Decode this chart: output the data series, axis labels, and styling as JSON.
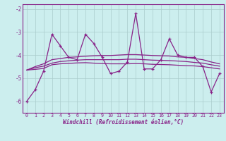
{
  "x": [
    0,
    1,
    2,
    3,
    4,
    5,
    6,
    7,
    8,
    9,
    10,
    11,
    12,
    13,
    14,
    15,
    16,
    17,
    18,
    19,
    20,
    21,
    22,
    23
  ],
  "series1": [
    -6.0,
    -5.5,
    -4.7,
    -3.1,
    -3.6,
    -4.1,
    -4.2,
    -3.1,
    -3.5,
    -4.1,
    -4.8,
    -4.7,
    -4.3,
    -2.2,
    -4.6,
    -4.6,
    -4.2,
    -3.3,
    -4.0,
    -4.1,
    -4.1,
    -4.5,
    -5.6,
    -4.8
  ],
  "series2": [
    -4.65,
    -4.62,
    -4.58,
    -4.42,
    -4.38,
    -4.36,
    -4.34,
    -4.33,
    -4.35,
    -4.37,
    -4.38,
    -4.38,
    -4.38,
    -4.37,
    -4.38,
    -4.4,
    -4.41,
    -4.42,
    -4.44,
    -4.46,
    -4.47,
    -4.5,
    -4.55,
    -4.6
  ],
  "series3": [
    -4.65,
    -4.55,
    -4.48,
    -4.35,
    -4.28,
    -4.25,
    -4.22,
    -4.2,
    -4.2,
    -4.2,
    -4.2,
    -4.2,
    -4.18,
    -4.18,
    -4.2,
    -4.22,
    -4.23,
    -4.24,
    -4.26,
    -4.28,
    -4.32,
    -4.35,
    -4.42,
    -4.48
  ],
  "series4": [
    -4.65,
    -4.5,
    -4.38,
    -4.2,
    -4.15,
    -4.1,
    -4.08,
    -4.05,
    -4.03,
    -4.02,
    -4.02,
    -4.0,
    -3.98,
    -3.98,
    -4.0,
    -4.02,
    -4.03,
    -4.04,
    -4.08,
    -4.1,
    -4.15,
    -4.2,
    -4.3,
    -4.38
  ],
  "line_color": "#882288",
  "bg_color": "#cceeee",
  "grid_color": "#aacccc",
  "xlabel": "Windchill (Refroidissement éolien,°C)",
  "ylim": [
    -6.5,
    -1.8
  ],
  "xlim": [
    -0.5,
    23.5
  ]
}
